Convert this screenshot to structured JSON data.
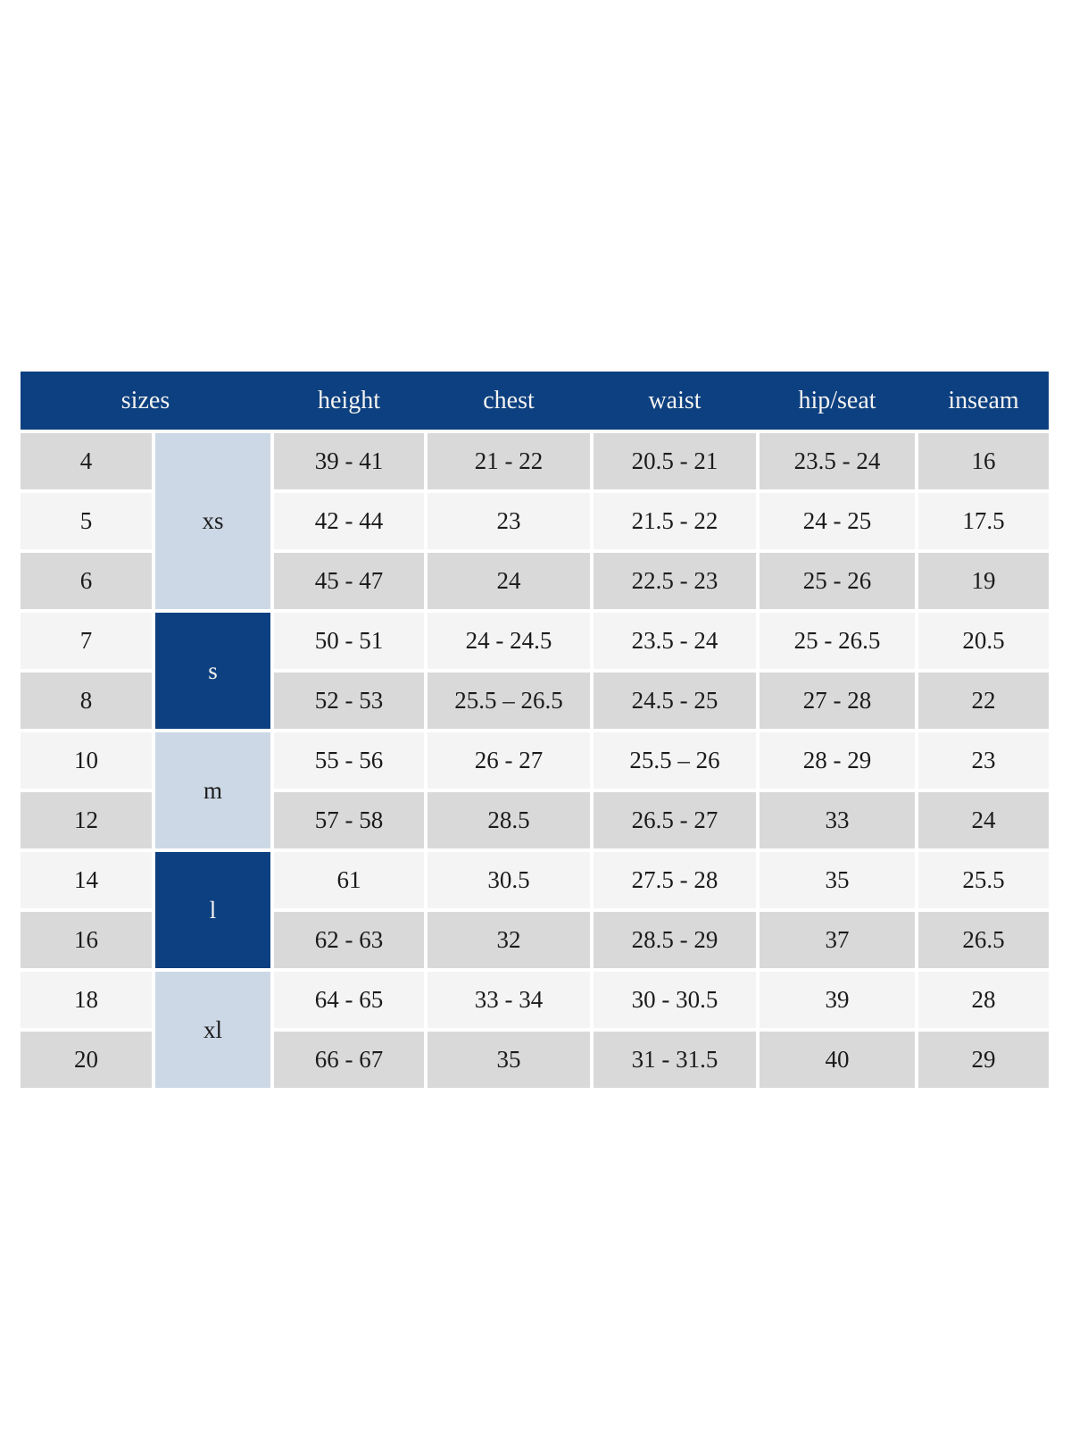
{
  "chart_data": {
    "type": "table",
    "columns": [
      "sizes",
      "height",
      "chest",
      "waist",
      "hip/seat",
      "inseam"
    ],
    "size_groups": [
      {
        "label": "xs",
        "style": "light-blue"
      },
      {
        "label": "s",
        "style": "navy"
      },
      {
        "label": "m",
        "style": "light-blue"
      },
      {
        "label": "l",
        "style": "navy"
      },
      {
        "label": "xl",
        "style": "light-blue"
      }
    ],
    "rows": [
      {
        "size": "4",
        "height": "39 - 41",
        "chest": "21 - 22",
        "waist": "20.5 - 21",
        "hip_seat": "23.5 - 24",
        "inseam": "16"
      },
      {
        "size": "5",
        "height": "42 - 44",
        "chest": "23",
        "waist": "21.5 - 22",
        "hip_seat": "24 - 25",
        "inseam": "17.5"
      },
      {
        "size": "6",
        "height": "45 - 47",
        "chest": "24",
        "waist": "22.5 - 23",
        "hip_seat": "25 - 26",
        "inseam": "19"
      },
      {
        "size": "7",
        "height": "50 - 51",
        "chest": "24 - 24.5",
        "waist": "23.5 - 24",
        "hip_seat": "25 - 26.5",
        "inseam": "20.5"
      },
      {
        "size": "8",
        "height": "52 - 53",
        "chest": "25.5 – 26.5",
        "waist": "24.5 - 25",
        "hip_seat": "27 - 28",
        "inseam": "22"
      },
      {
        "size": "10",
        "height": "55 - 56",
        "chest": "26 - 27",
        "waist": "25.5 – 26",
        "hip_seat": "28 - 29",
        "inseam": "23"
      },
      {
        "size": "12",
        "height": "57 - 58",
        "chest": "28.5",
        "waist": "26.5 - 27",
        "hip_seat": "33",
        "inseam": "24"
      },
      {
        "size": "14",
        "height": "61",
        "chest": "30.5",
        "waist": "27.5 - 28",
        "hip_seat": "35",
        "inseam": "25.5"
      },
      {
        "size": "16",
        "height": "62 - 63",
        "chest": "32",
        "waist": "28.5 - 29",
        "hip_seat": "37",
        "inseam": "26.5"
      },
      {
        "size": "18",
        "height": "64 - 65",
        "chest": "33 - 34",
        "waist": "30 - 30.5",
        "hip_seat": "39",
        "inseam": "28"
      },
      {
        "size": "20",
        "height": "66 - 67",
        "chest": "35",
        "waist": "31 - 31.5",
        "hip_seat": "40",
        "inseam": "29"
      }
    ],
    "layout": {
      "header_position": "top",
      "row_shading": "alternating",
      "merged_first_column_groups": [
        3,
        2,
        2,
        2,
        2
      ]
    }
  },
  "colors": {
    "header_navy": "#0d4080",
    "group_light_blue": "#ccd8e5",
    "row_gray": "#d9d9d9",
    "row_light": "#f4f4f4",
    "header_text": "#f4f3f1",
    "cell_text": "#1b1b1b",
    "page_background": "#ffffff"
  }
}
